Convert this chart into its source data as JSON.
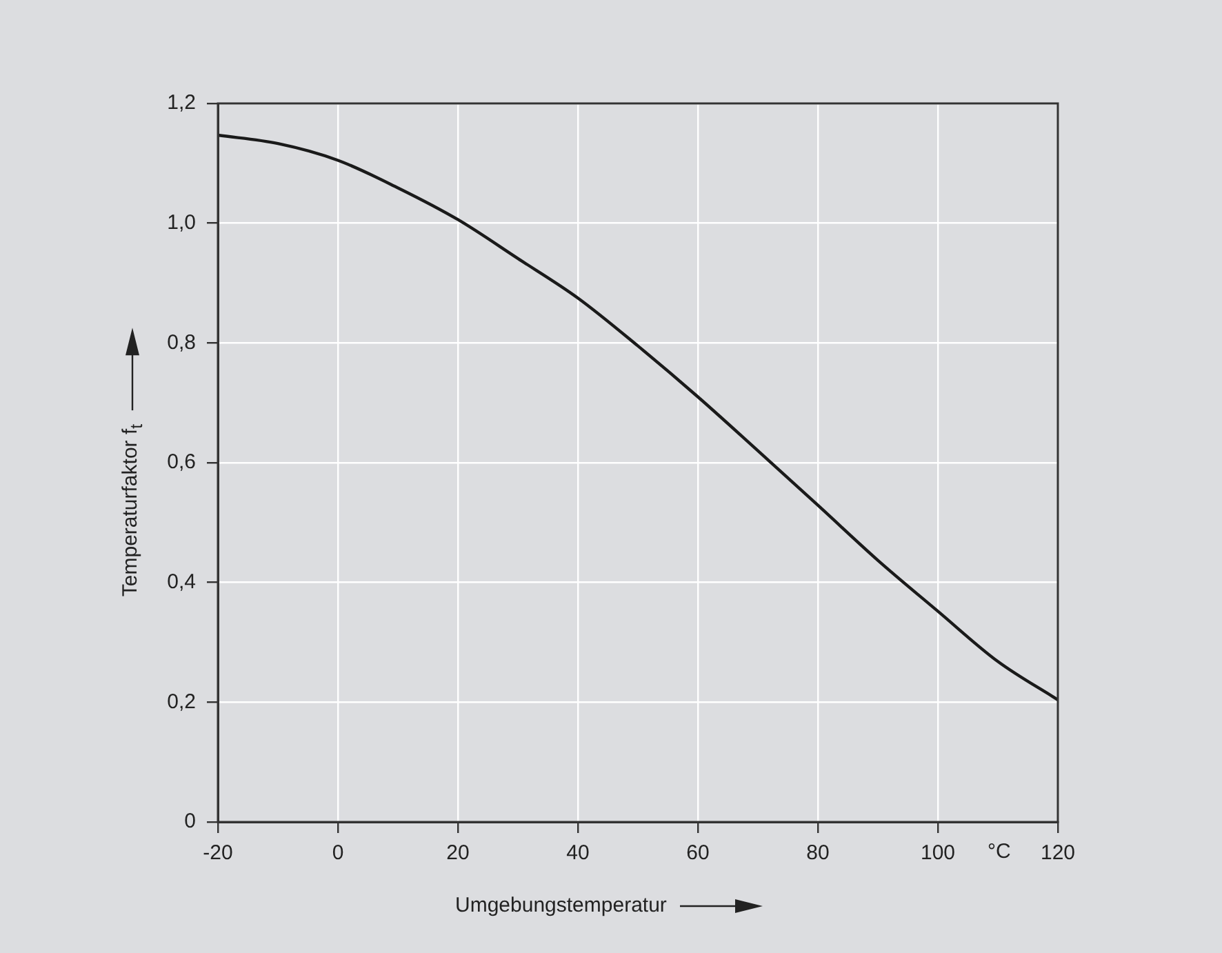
{
  "chart_data": {
    "type": "line",
    "xlabel": "Umgebungstemperatur",
    "ylabel": "Temperaturfaktor f$_{t}$",
    "annotations": [
      "°C"
    ],
    "x": [
      -20,
      -10,
      0,
      10,
      20,
      30,
      40,
      50,
      60,
      70,
      80,
      90,
      100,
      110,
      120
    ],
    "series": [
      {
        "color": "#1a1a1a",
        "values": [
          1.147,
          1.133,
          1.105,
          1.059,
          1.006,
          0.941,
          0.875,
          0.795,
          0.71,
          0.62,
          0.529,
          0.437,
          0.352,
          0.268,
          0.204
        ]
      }
    ],
    "xlim": [
      -20,
      120
    ],
    "xticks": [
      -20,
      0,
      20,
      40,
      60,
      80,
      100,
      120
    ],
    "ylim": [
      0,
      1.2
    ],
    "yticks": [
      0,
      {
        "value": 0.2,
        "label": "0,2"
      },
      {
        "value": 0.4,
        "label": "0,4"
      },
      {
        "value": 0.6,
        "label": "0,6"
      },
      {
        "value": 0.8,
        "label": "0,8"
      },
      {
        "value": 1.0,
        "label": "1,0"
      },
      {
        "value": 1.2,
        "label": "1,2"
      }
    ],
    "grid": true,
    "legend": false,
    "marker": "none",
    "line_style": "solid"
  }
}
